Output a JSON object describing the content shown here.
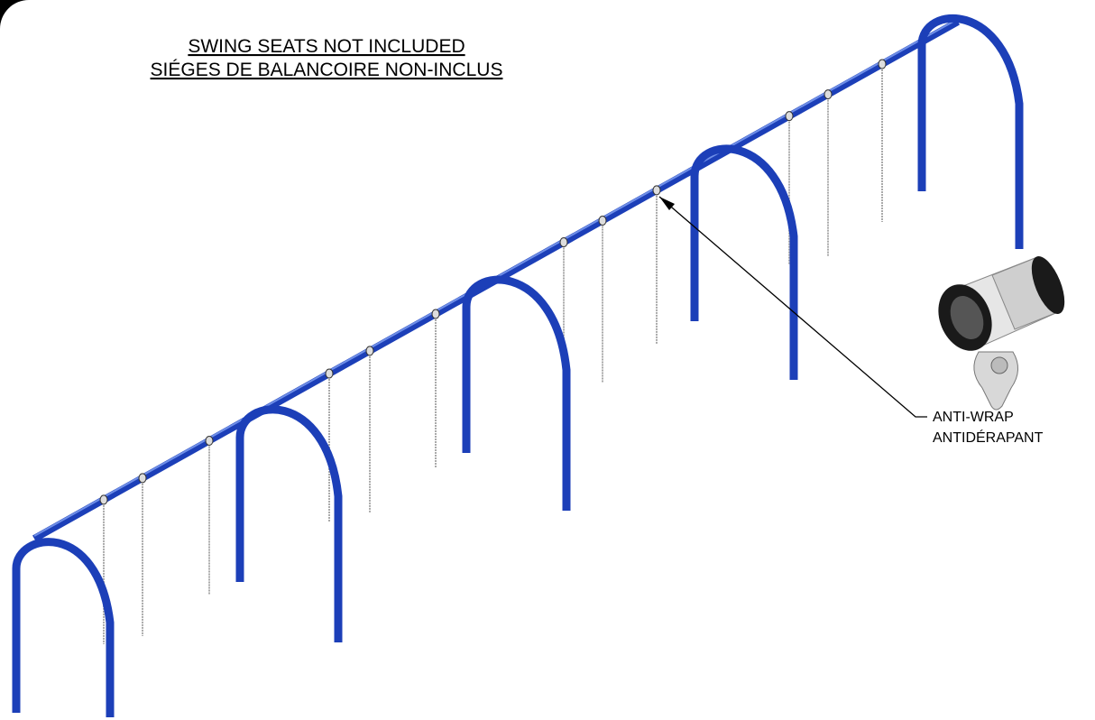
{
  "notes": [
    "SWING SEATS NOT INCLUDED",
    "SIÉGES DE BALANCOIRE NON-INCLUS"
  ],
  "callout": {
    "lines": [
      "ANTI-WRAP",
      "ANTIDÉRAPANT"
    ]
  }
}
